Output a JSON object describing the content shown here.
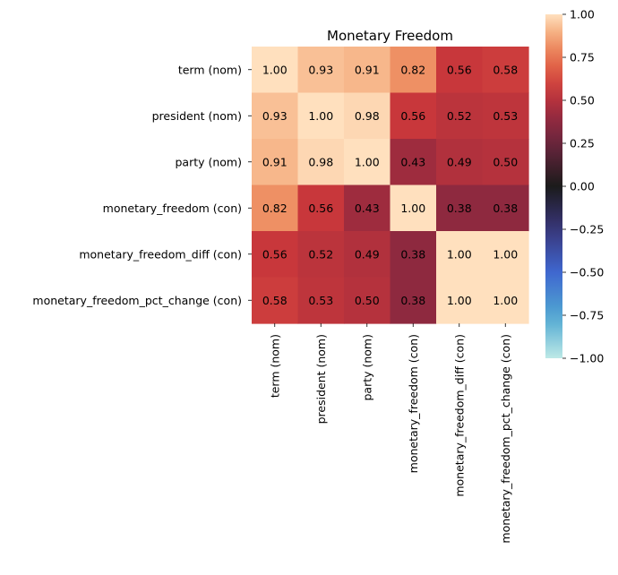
{
  "chart_data": {
    "type": "heatmap",
    "title": "Monetary Freedom",
    "row_labels": [
      "term (nom)",
      "president (nom)",
      "party (nom)",
      "monetary_freedom (con)",
      "monetary_freedom_diff (con)",
      "monetary_freedom_pct_change (con)"
    ],
    "col_labels": [
      "term (nom)",
      "president (nom)",
      "party (nom)",
      "monetary_freedom (con)",
      "monetary_freedom_diff (con)",
      "monetary_freedom_pct_change (con)"
    ],
    "values": [
      [
        1.0,
        0.93,
        0.91,
        0.82,
        0.56,
        0.58
      ],
      [
        0.93,
        1.0,
        0.98,
        0.56,
        0.52,
        0.53
      ],
      [
        0.91,
        0.98,
        1.0,
        0.43,
        0.49,
        0.5
      ],
      [
        0.82,
        0.56,
        0.43,
        1.0,
        0.38,
        0.38
      ],
      [
        0.56,
        0.52,
        0.49,
        0.38,
        1.0,
        1.0
      ],
      [
        0.58,
        0.53,
        0.5,
        0.38,
        1.0,
        1.0
      ]
    ],
    "cell_labels": [
      [
        "1.00",
        "0.93",
        "0.91",
        "0.82",
        "0.56",
        "0.58"
      ],
      [
        "0.93",
        "1.00",
        "0.98",
        "0.56",
        "0.52",
        "0.53"
      ],
      [
        "0.91",
        "0.98",
        "1.00",
        "0.43",
        "0.49",
        "0.50"
      ],
      [
        "0.82",
        "0.56",
        "0.43",
        "1.00",
        "0.38",
        "0.38"
      ],
      [
        "0.56",
        "0.52",
        "0.49",
        "0.38",
        "1.00",
        "1.00"
      ],
      [
        "0.58",
        "0.53",
        "0.50",
        "0.38",
        "1.00",
        "1.00"
      ]
    ],
    "vmin": -1.0,
    "vmax": 1.0,
    "colormap": "icefire",
    "colorbar": {
      "position": "right",
      "ticks": [
        1.0,
        0.75,
        0.5,
        0.25,
        0.0,
        -0.25,
        -0.5,
        -0.75,
        -1.0
      ],
      "tick_labels": [
        "1.00",
        "0.75",
        "0.50",
        "0.25",
        "0.00",
        "−0.25",
        "−0.50",
        "−0.75",
        "−1.00"
      ]
    },
    "grid": false
  }
}
